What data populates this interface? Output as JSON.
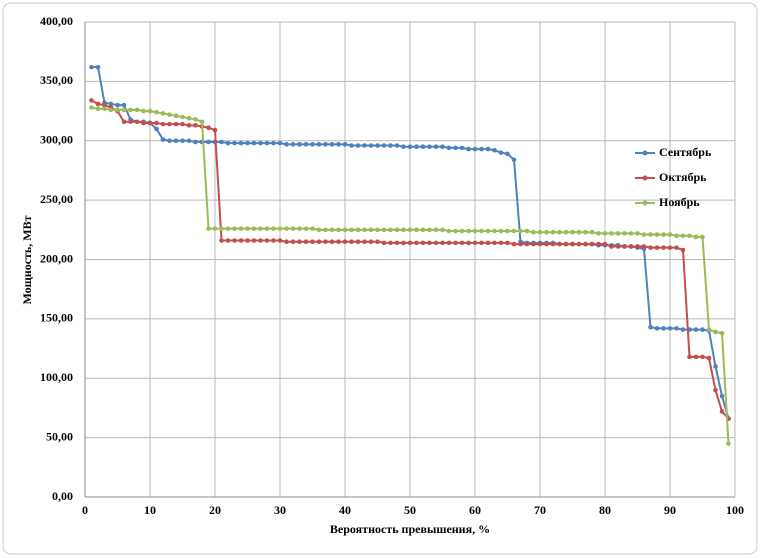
{
  "chart_data": {
    "type": "line",
    "xlabel": "Вероятность превышения, %",
    "ylabel": "Мощность, МВт",
    "x": [
      1,
      2,
      3,
      4,
      5,
      6,
      7,
      8,
      9,
      10,
      11,
      12,
      13,
      14,
      15,
      16,
      17,
      18,
      19,
      20,
      21,
      22,
      23,
      24,
      25,
      26,
      27,
      28,
      29,
      30,
      31,
      32,
      33,
      34,
      35,
      36,
      37,
      38,
      39,
      40,
      41,
      42,
      43,
      44,
      45,
      46,
      47,
      48,
      49,
      50,
      51,
      52,
      53,
      54,
      55,
      56,
      57,
      58,
      59,
      60,
      61,
      62,
      63,
      64,
      65,
      66,
      67,
      68,
      69,
      70,
      71,
      72,
      73,
      74,
      75,
      76,
      77,
      78,
      79,
      80,
      81,
      82,
      83,
      84,
      85,
      86,
      87,
      88,
      89,
      90,
      91,
      92,
      93,
      94,
      95,
      96,
      97,
      98,
      99
    ],
    "series": [
      {
        "name": "Сентябрь",
        "color": "#4f81bd",
        "values": [
          362,
          362,
          332,
          331,
          330,
          330,
          318,
          316,
          316,
          315,
          310,
          301,
          300,
          300,
          300,
          300,
          299,
          299,
          299,
          299,
          299,
          298,
          298,
          298,
          298,
          298,
          298,
          298,
          298,
          298,
          297,
          297,
          297,
          297,
          297,
          297,
          297,
          297,
          297,
          297,
          296,
          296,
          296,
          296,
          296,
          296,
          296,
          296,
          295,
          295,
          295,
          295,
          295,
          295,
          295,
          294,
          294,
          294,
          293,
          293,
          293,
          293,
          292,
          290,
          289,
          284,
          215,
          214,
          214,
          214,
          214,
          214,
          213,
          213,
          213,
          213,
          213,
          213,
          212,
          212,
          212,
          212,
          211,
          211,
          210,
          209,
          143,
          142,
          142,
          142,
          142,
          141,
          141,
          141,
          141,
          140,
          110,
          85,
          66
        ]
      },
      {
        "name": "Октябрь",
        "color": "#c0504d",
        "values": [
          334,
          331,
          330,
          328,
          325,
          316,
          316,
          316,
          315,
          315,
          315,
          314,
          314,
          314,
          314,
          313,
          313,
          312,
          311,
          309,
          216,
          216,
          216,
          216,
          216,
          216,
          216,
          216,
          216,
          216,
          215,
          215,
          215,
          215,
          215,
          215,
          215,
          215,
          215,
          215,
          215,
          215,
          215,
          215,
          215,
          214,
          214,
          214,
          214,
          214,
          214,
          214,
          214,
          214,
          214,
          214,
          214,
          214,
          214,
          214,
          214,
          214,
          214,
          214,
          214,
          213,
          213,
          213,
          213,
          213,
          213,
          213,
          213,
          213,
          213,
          213,
          213,
          213,
          213,
          213,
          211,
          211,
          211,
          211,
          211,
          211,
          210,
          210,
          210,
          210,
          210,
          208,
          118,
          118,
          118,
          117,
          90,
          72,
          66
        ]
      },
      {
        "name": "Ноябрь",
        "color": "#9bbb59",
        "values": [
          328,
          327,
          327,
          326,
          326,
          326,
          326,
          326,
          325,
          325,
          324,
          323,
          322,
          321,
          320,
          319,
          318,
          316,
          226,
          226,
          226,
          226,
          226,
          226,
          226,
          226,
          226,
          226,
          226,
          226,
          226,
          226,
          226,
          226,
          226,
          225,
          225,
          225,
          225,
          225,
          225,
          225,
          225,
          225,
          225,
          225,
          225,
          225,
          225,
          225,
          225,
          225,
          225,
          225,
          225,
          224,
          224,
          224,
          224,
          224,
          224,
          224,
          224,
          224,
          224,
          224,
          224,
          224,
          223,
          223,
          223,
          223,
          223,
          223,
          223,
          223,
          223,
          223,
          222,
          222,
          222,
          222,
          222,
          222,
          222,
          221,
          221,
          221,
          221,
          221,
          220,
          220,
          220,
          219,
          219,
          141,
          139,
          138,
          45
        ]
      }
    ],
    "xlim": [
      0,
      100
    ],
    "xticks": [
      0,
      10,
      20,
      30,
      40,
      50,
      60,
      70,
      80,
      90,
      100
    ],
    "ylim": [
      0,
      400
    ],
    "yticks": [
      {
        "value": 0,
        "label": "0,00"
      },
      {
        "value": 50,
        "label": "50,00"
      },
      {
        "value": 100,
        "label": "100,00"
      },
      {
        "value": 150,
        "label": "150,00"
      },
      {
        "value": 200,
        "label": "200,00"
      },
      {
        "value": 250,
        "label": "250,00"
      },
      {
        "value": 300,
        "label": "300,00"
      },
      {
        "value": 350,
        "label": "350,00"
      },
      {
        "value": 400,
        "label": "400,00"
      }
    ],
    "grid": true,
    "legend": "right"
  }
}
